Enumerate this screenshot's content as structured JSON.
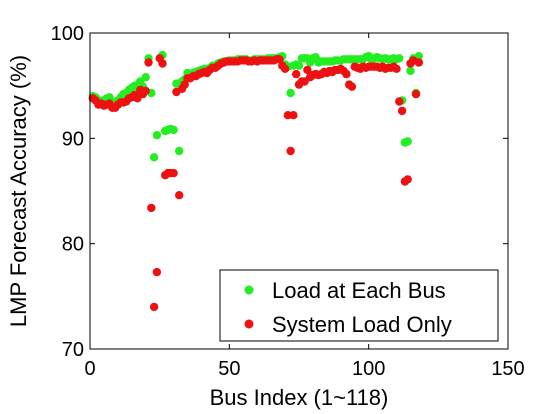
{
  "chart_data": {
    "type": "scatter",
    "xlabel": "Bus Index (1~118)",
    "ylabel": "LMP Forecast Accuracy (%)",
    "xlim": [
      0,
      150
    ],
    "ylim": [
      70,
      100
    ],
    "xticks": [
      0,
      50,
      100,
      150
    ],
    "yticks": [
      70,
      80,
      90,
      100
    ],
    "grid": false,
    "legend_position": "bottom-right",
    "series": [
      {
        "name": "Load at Each Bus",
        "color": "#22ee22",
        "points": [
          [
            1,
            94.0
          ],
          [
            2,
            93.9
          ],
          [
            3,
            93.6
          ],
          [
            4,
            93.5
          ],
          [
            5,
            93.6
          ],
          [
            6,
            93.8
          ],
          [
            7,
            93.9
          ],
          [
            8,
            93.5
          ],
          [
            9,
            93.4
          ],
          [
            10,
            93.6
          ],
          [
            11,
            93.9
          ],
          [
            12,
            94.2
          ],
          [
            13,
            94.3
          ],
          [
            14,
            94.6
          ],
          [
            15,
            94.8
          ],
          [
            16,
            95.0
          ],
          [
            17,
            94.5
          ],
          [
            18,
            95.4
          ],
          [
            19,
            94.9
          ],
          [
            20,
            95.8
          ],
          [
            21,
            97.6
          ],
          [
            22,
            94.3
          ],
          [
            23,
            88.2
          ],
          [
            24,
            90.3
          ],
          [
            25,
            97.6
          ],
          [
            26,
            97.9
          ],
          [
            27,
            90.7
          ],
          [
            28,
            90.8
          ],
          [
            29,
            90.9
          ],
          [
            30,
            90.8
          ],
          [
            31,
            95.2
          ],
          [
            32,
            88.8
          ],
          [
            33,
            95.4
          ],
          [
            34,
            95.6
          ],
          [
            35,
            96.2
          ],
          [
            36,
            96.1
          ],
          [
            37,
            96.2
          ],
          [
            38,
            96.3
          ],
          [
            39,
            96.4
          ],
          [
            40,
            96.5
          ],
          [
            41,
            96.6
          ],
          [
            42,
            96.4
          ],
          [
            43,
            96.7
          ],
          [
            44,
            96.9
          ],
          [
            45,
            96.9
          ],
          [
            46,
            97.1
          ],
          [
            47,
            97.2
          ],
          [
            48,
            97.3
          ],
          [
            49,
            97.3
          ],
          [
            50,
            97.4
          ],
          [
            51,
            97.4
          ],
          [
            52,
            97.4
          ],
          [
            53,
            97.5
          ],
          [
            54,
            97.5
          ],
          [
            55,
            97.5
          ],
          [
            56,
            97.5
          ],
          [
            57,
            97.4
          ],
          [
            58,
            97.4
          ],
          [
            59,
            97.5
          ],
          [
            60,
            97.5
          ],
          [
            61,
            97.5
          ],
          [
            62,
            97.5
          ],
          [
            63,
            97.5
          ],
          [
            64,
            97.6
          ],
          [
            65,
            97.6
          ],
          [
            66,
            97.6
          ],
          [
            67,
            97.6
          ],
          [
            68,
            97.7
          ],
          [
            69,
            97.8
          ],
          [
            70,
            97.0
          ],
          [
            71,
            96.8
          ],
          [
            72,
            94.3
          ],
          [
            73,
            96.9
          ],
          [
            74,
            97.0
          ],
          [
            75,
            96.9
          ],
          [
            76,
            97.6
          ],
          [
            77,
            97.6
          ],
          [
            78,
            97.6
          ],
          [
            79,
            97.2
          ],
          [
            80,
            97.6
          ],
          [
            81,
            97.7
          ],
          [
            82,
            97.2
          ],
          [
            83,
            97.3
          ],
          [
            84,
            97.3
          ],
          [
            85,
            97.3
          ],
          [
            86,
            97.3
          ],
          [
            87,
            97.3
          ],
          [
            88,
            97.4
          ],
          [
            89,
            97.4
          ],
          [
            90,
            97.4
          ],
          [
            91,
            97.5
          ],
          [
            92,
            97.5
          ],
          [
            93,
            97.5
          ],
          [
            94,
            97.5
          ],
          [
            95,
            97.5
          ],
          [
            96,
            97.5
          ],
          [
            97,
            97.5
          ],
          [
            98,
            97.5
          ],
          [
            99,
            97.7
          ],
          [
            100,
            97.8
          ],
          [
            101,
            97.5
          ],
          [
            102,
            97.6
          ],
          [
            103,
            97.7
          ],
          [
            104,
            97.6
          ],
          [
            105,
            97.5
          ],
          [
            106,
            97.6
          ],
          [
            107,
            97.5
          ],
          [
            108,
            97.5
          ],
          [
            109,
            97.6
          ],
          [
            110,
            97.5
          ],
          [
            111,
            97.6
          ],
          [
            112,
            93.6
          ],
          [
            113,
            89.6
          ],
          [
            114,
            89.7
          ],
          [
            115,
            96.4
          ],
          [
            116,
            97.6
          ],
          [
            117,
            94.3
          ],
          [
            118,
            97.8
          ]
        ]
      },
      {
        "name": "System Load Only",
        "color": "#ee1111",
        "points": [
          [
            1,
            93.8
          ],
          [
            2,
            93.6
          ],
          [
            3,
            93.2
          ],
          [
            4,
            93.3
          ],
          [
            5,
            93.1
          ],
          [
            6,
            93.2
          ],
          [
            7,
            93.3
          ],
          [
            8,
            92.9
          ],
          [
            9,
            92.9
          ],
          [
            10,
            93.2
          ],
          [
            11,
            93.4
          ],
          [
            12,
            93.4
          ],
          [
            13,
            93.5
          ],
          [
            14,
            93.8
          ],
          [
            15,
            93.9
          ],
          [
            16,
            94.1
          ],
          [
            17,
            93.8
          ],
          [
            18,
            94.6
          ],
          [
            19,
            94.2
          ],
          [
            20,
            94.5
          ],
          [
            21,
            97.2
          ],
          [
            22,
            83.4
          ],
          [
            23,
            74.0
          ],
          [
            24,
            77.3
          ],
          [
            25,
            97.6
          ],
          [
            26,
            97.1
          ],
          [
            27,
            86.5
          ],
          [
            28,
            86.7
          ],
          [
            29,
            86.7
          ],
          [
            30,
            86.7
          ],
          [
            31,
            94.4
          ],
          [
            32,
            84.6
          ],
          [
            33,
            94.7
          ],
          [
            34,
            95.1
          ],
          [
            35,
            95.7
          ],
          [
            36,
            95.7
          ],
          [
            37,
            95.9
          ],
          [
            38,
            95.9
          ],
          [
            39,
            96.1
          ],
          [
            40,
            96.2
          ],
          [
            41,
            96.3
          ],
          [
            42,
            96.2
          ],
          [
            43,
            96.5
          ],
          [
            44,
            96.7
          ],
          [
            45,
            96.7
          ],
          [
            46,
            96.9
          ],
          [
            47,
            97.1
          ],
          [
            48,
            97.2
          ],
          [
            49,
            97.3
          ],
          [
            50,
            97.3
          ],
          [
            51,
            97.3
          ],
          [
            52,
            97.3
          ],
          [
            53,
            97.3
          ],
          [
            54,
            97.4
          ],
          [
            55,
            97.4
          ],
          [
            56,
            97.4
          ],
          [
            57,
            97.3
          ],
          [
            58,
            97.3
          ],
          [
            59,
            97.4
          ],
          [
            60,
            97.3
          ],
          [
            61,
            97.4
          ],
          [
            62,
            97.4
          ],
          [
            63,
            97.4
          ],
          [
            64,
            97.4
          ],
          [
            65,
            97.4
          ],
          [
            66,
            97.4
          ],
          [
            67,
            97.5
          ],
          [
            68,
            97.5
          ],
          [
            69,
            96.9
          ],
          [
            70,
            96.6
          ],
          [
            71,
            92.2
          ],
          [
            72,
            88.8
          ],
          [
            73,
            92.2
          ],
          [
            74,
            96.1
          ],
          [
            75,
            95.1
          ],
          [
            76,
            95.4
          ],
          [
            77,
            95.4
          ],
          [
            78,
            96.5
          ],
          [
            79,
            95.8
          ],
          [
            80,
            96.0
          ],
          [
            81,
            96.1
          ],
          [
            82,
            96.0
          ],
          [
            83,
            96.1
          ],
          [
            84,
            96.3
          ],
          [
            85,
            96.2
          ],
          [
            86,
            96.4
          ],
          [
            87,
            96.3
          ],
          [
            88,
            96.5
          ],
          [
            89,
            96.5
          ],
          [
            90,
            96.6
          ],
          [
            91,
            96.4
          ],
          [
            92,
            96.1
          ],
          [
            93,
            95.1
          ],
          [
            94,
            94.9
          ],
          [
            95,
            96.8
          ],
          [
            96,
            96.7
          ],
          [
            97,
            96.6
          ],
          [
            98,
            96.8
          ],
          [
            99,
            96.7
          ],
          [
            100,
            96.8
          ],
          [
            101,
            96.8
          ],
          [
            102,
            96.8
          ],
          [
            103,
            96.8
          ],
          [
            104,
            96.7
          ],
          [
            105,
            96.8
          ],
          [
            106,
            96.6
          ],
          [
            107,
            96.7
          ],
          [
            108,
            96.7
          ],
          [
            109,
            96.8
          ],
          [
            110,
            96.6
          ],
          [
            111,
            93.5
          ],
          [
            112,
            92.6
          ],
          [
            113,
            85.9
          ],
          [
            114,
            86.1
          ],
          [
            115,
            97.1
          ],
          [
            116,
            97.4
          ],
          [
            117,
            94.2
          ],
          [
            118,
            97.2
          ]
        ]
      }
    ]
  }
}
